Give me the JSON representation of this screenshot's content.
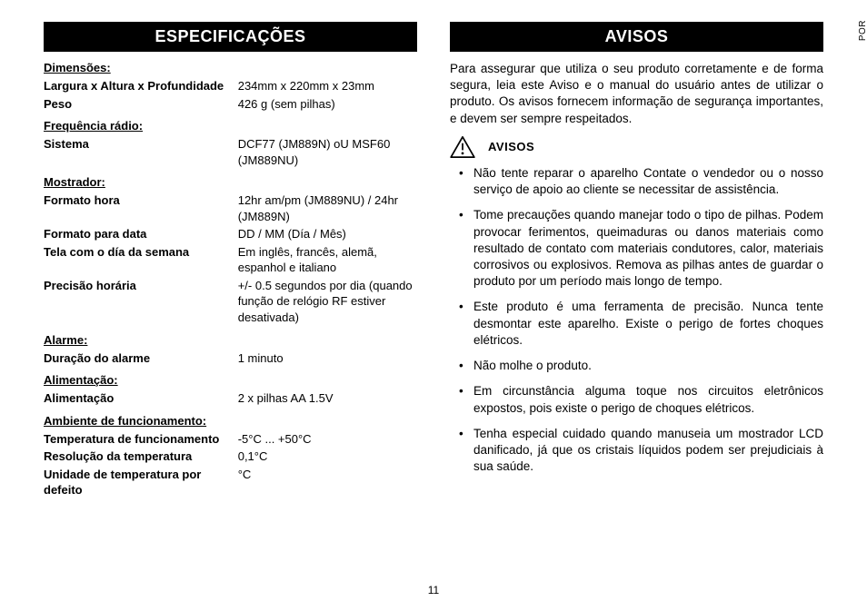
{
  "sideTag": "POR",
  "pageNumber": "11",
  "left": {
    "heading": "ESPECIFICAÇÕES",
    "groups": [
      {
        "label": "Dimensões:",
        "rows": [
          {
            "k": "Largura x Altura x Profundidade",
            "v": "234mm x 220mm x 23mm"
          },
          {
            "k": "Peso",
            "v": "426 g (sem pilhas)"
          }
        ]
      },
      {
        "label": "Frequência rádio:",
        "rows": [
          {
            "k": "Sistema",
            "v": "DCF77 (JM889N) oU MSF60 (JM889NU)"
          }
        ]
      },
      {
        "label": "Mostrador:",
        "rows": [
          {
            "k": "Formato hora",
            "v": "12hr am/pm (JM889NU) / 24hr (JM889N)"
          },
          {
            "k": "Formato para data",
            "v": "DD / MM (Día / Mês)"
          },
          {
            "k": "Tela com o día da semana",
            "v": "Em inglês, francês, alemã, espanhol e italiano"
          },
          {
            "k": "Precisão horária",
            "v": "+/- 0.5 segundos por dia (quando função de relógio RF estiver desativada)"
          }
        ]
      },
      {
        "label": "Alarme:",
        "rows": [
          {
            "k": "Duração do alarme",
            "v": "1 minuto"
          }
        ]
      },
      {
        "label": "Alimentação:",
        "rows": [
          {
            "k": "Alimentação",
            "v": "2 x pilhas AA 1.5V"
          }
        ]
      },
      {
        "label": "Ambiente de funcionamento:",
        "rows": [
          {
            "k": "Temperatura de funcionamento",
            "v": "-5°C ... +50°C"
          },
          {
            "k": "Resolução da temperatura",
            "v": "0,1°C"
          },
          {
            "k": "Unidade de temperatura por defeito",
            "v": "°C"
          }
        ]
      }
    ]
  },
  "right": {
    "heading": "AVISOS",
    "intro": "Para assegurar que utiliza o seu produto corretamente e de forma segura, leia este Aviso e o manual do usuário antes de utilizar o produto. Os avisos fornecem informação de segurança importantes, e devem ser sempre respeitados.",
    "subheading": "AVISOS",
    "bullets": [
      "Não tente reparar o aparelho Contate o vendedor ou o nosso serviço de apoio ao cliente se necessitar de assistência.",
      "Tome precauções quando manejar todo o tipo de pilhas. Podem provocar ferimentos, queimaduras ou danos materiais como resultado de contato com materiais condutores, calor, materiais corrosivos ou explosivos. Remova as pilhas antes de guardar o produto por um período mais longo de tempo.",
      "Este produto é uma ferramenta de precisão. Nunca tente desmontar este aparelho. Existe o perigo de fortes choques elétricos.",
      "Não molhe o produto.",
      "Em circunstância alguma toque nos circuitos eletrônicos expostos, pois existe o perigo de choques elétricos.",
      "Tenha especial cuidado quando manuseia um mostrador LCD danificado, já que os cristais líquidos podem ser prejudiciais à sua saúde."
    ]
  }
}
